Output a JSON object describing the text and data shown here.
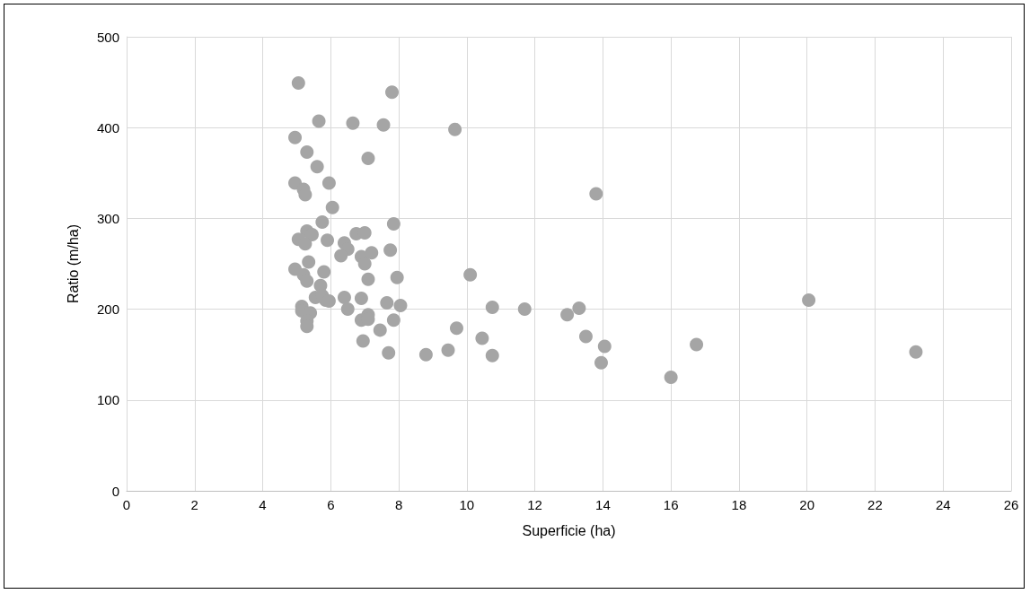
{
  "chart_data": {
    "type": "scatter",
    "xlabel": "Superficie (ha)",
    "ylabel": "Ratio (m/ha)",
    "color": "#a5a5a5",
    "marker": "circle",
    "grid": true,
    "x": [
      5.05,
      7.8,
      5.65,
      6.65,
      7.55,
      9.65,
      4.95,
      5.3,
      5.6,
      7.1,
      4.95,
      5.2,
      5.25,
      5.95,
      13.8,
      6.05,
      5.75,
      7.85,
      5.3,
      5.45,
      6.75,
      7.0,
      5.05,
      5.25,
      5.9,
      6.4,
      6.5,
      7.75,
      6.3,
      6.9,
      7.2,
      7.0,
      5.35,
      4.95,
      5.2,
      5.8,
      7.95,
      7.1,
      10.1,
      5.3,
      5.7,
      5.55,
      5.75,
      5.85,
      5.95,
      6.4,
      6.9,
      7.65,
      8.05,
      5.15,
      5.15,
      5.4,
      5.3,
      5.3,
      6.5,
      6.9,
      7.1,
      7.1,
      7.85,
      7.45,
      6.95,
      7.7,
      10.75,
      11.7,
      12.95,
      13.3,
      13.5,
      14.05,
      13.95,
      10.45,
      9.7,
      9.45,
      8.8,
      10.75,
      16.0,
      16.75,
      20.05,
      23.2
    ],
    "values": [
      449,
      439,
      407,
      405,
      403,
      398,
      389,
      373,
      357,
      366,
      339,
      332,
      326,
      339,
      327,
      312,
      296,
      294,
      286,
      282,
      283,
      284,
      277,
      272,
      276,
      273,
      266,
      265,
      259,
      258,
      262,
      250,
      252,
      244,
      238,
      241,
      235,
      233,
      238,
      231,
      226,
      213,
      215,
      210,
      209,
      213,
      212,
      207,
      204,
      203,
      198,
      196,
      187,
      181,
      200,
      188,
      194,
      189,
      188,
      177,
      165,
      152,
      202,
      200,
      194,
      201,
      170,
      159,
      141,
      168,
      179,
      155,
      150,
      149,
      125,
      161,
      210,
      153
    ],
    "xlim": [
      0,
      26
    ],
    "xticks": [
      0,
      2,
      4,
      6,
      8,
      10,
      12,
      14,
      16,
      18,
      20,
      22,
      24,
      26
    ],
    "ylim": [
      0,
      500
    ],
    "yticks": [
      0,
      100,
      200,
      300,
      400,
      500
    ]
  }
}
